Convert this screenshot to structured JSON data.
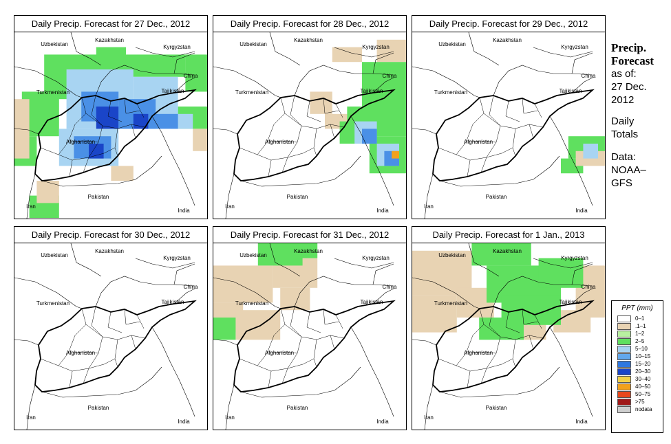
{
  "panels": [
    {
      "title": "Daily Precip. Forecast for  27 Dec., 2012",
      "precip": [
        {
          "level": "green",
          "cells": [
            [
              4,
              3,
              11,
              6
            ],
            [
              11,
              2,
              4,
              3
            ],
            [
              15,
              3,
              8,
              3
            ],
            [
              23,
              3,
              3,
              5
            ],
            [
              1,
              8,
              5,
              6
            ],
            [
              0,
              14,
              3,
              4
            ],
            [
              22,
              10,
              4,
              3
            ],
            [
              2,
              22,
              4,
              3
            ]
          ]
        },
        {
          "level": "tan",
          "cells": [
            [
              0,
              9,
              2,
              8
            ],
            [
              3,
              20,
              3,
              3
            ],
            [
              13,
              18,
              3,
              2
            ],
            [
              24,
              13,
              2,
              3
            ]
          ]
        },
        {
          "level": "blue1",
          "cells": [
            [
              7,
              5,
              9,
              8
            ],
            [
              16,
              6,
              6,
              6
            ],
            [
              6,
              13,
              8,
              5
            ],
            [
              21,
              11,
              3,
              2
            ]
          ]
        },
        {
          "level": "blue2",
          "cells": [
            [
              9,
              8,
              5,
              4
            ],
            [
              14,
              9,
              5,
              4
            ],
            [
              8,
              14,
              5,
              3
            ],
            [
              17,
              11,
              5,
              2
            ]
          ]
        },
        {
          "level": "blue3",
          "cells": [
            [
              11,
              10,
              3,
              3
            ],
            [
              16,
              11,
              2,
              2
            ],
            [
              10,
              15,
              2,
              2
            ]
          ]
        }
      ]
    },
    {
      "title": "Daily Precip. Forecast for  28 Dec., 2012",
      "precip": [
        {
          "level": "tan",
          "cells": [
            [
              16,
              2,
              4,
              2
            ],
            [
              22,
              1,
              4,
              3
            ],
            [
              13,
              8,
              3,
              3
            ],
            [
              15,
              11,
              3,
              2
            ],
            [
              24,
              5,
              2,
              3
            ]
          ]
        },
        {
          "level": "green",
          "cells": [
            [
              20,
              4,
              6,
              6
            ],
            [
              18,
              10,
              8,
              4
            ],
            [
              21,
              14,
              5,
              5
            ],
            [
              17,
              12,
              4,
              3
            ]
          ]
        },
        {
          "level": "blue1",
          "cells": [
            [
              19,
              12,
              3,
              3
            ],
            [
              22,
              15,
              3,
              3
            ]
          ]
        },
        {
          "level": "blue2",
          "cells": [
            [
              20,
              13,
              2,
              2
            ],
            [
              23,
              16,
              2,
              2
            ]
          ]
        },
        {
          "level": "orange",
          "cells": [
            [
              24,
              16,
              1,
              1
            ]
          ]
        }
      ]
    },
    {
      "title": "Daily Precip. Forecast for  29 Dec., 2012",
      "precip": [
        {
          "level": "green",
          "cells": [
            [
              21,
              14,
              5,
              3
            ],
            [
              20,
              17,
              3,
              2
            ]
          ]
        },
        {
          "level": "tan",
          "cells": [
            [
              22,
              16,
              4,
              2
            ]
          ]
        },
        {
          "level": "blue1",
          "cells": [
            [
              23,
              15,
              2,
              2
            ]
          ]
        }
      ]
    },
    {
      "title": "Daily Precip. Forecast for  30 Dec., 2012",
      "precip": []
    },
    {
      "title": "Daily Precip. Forecast for  31 Dec., 2012",
      "precip": [
        {
          "level": "tan",
          "cells": [
            [
              0,
              3,
              8,
              5
            ],
            [
              8,
              2,
              6,
              4
            ],
            [
              0,
              8,
              4,
              4
            ],
            [
              3,
              9,
              6,
              4
            ],
            [
              9,
              6,
              4,
              3
            ]
          ]
        },
        {
          "level": "green",
          "cells": [
            [
              6,
              0,
              6,
              3
            ],
            [
              0,
              10,
              3,
              3
            ],
            [
              11,
              0,
              3,
              2
            ]
          ]
        }
      ]
    },
    {
      "title": "Daily Precip. Forecast for  1 Jan., 2013",
      "precip": [
        {
          "level": "tan",
          "cells": [
            [
              0,
              1,
              8,
              6
            ],
            [
              0,
              7,
              6,
              5
            ],
            [
              6,
              6,
              5,
              4
            ],
            [
              22,
              3,
              4,
              7
            ],
            [
              19,
              9,
              5,
              3
            ],
            [
              13,
              10,
              5,
              3
            ]
          ]
        },
        {
          "level": "green",
          "cells": [
            [
              8,
              0,
              8,
              3
            ],
            [
              10,
              3,
              10,
              5
            ],
            [
              12,
              7,
              8,
              4
            ],
            [
              17,
              2,
              6,
              4
            ],
            [
              9,
              10,
              6,
              3
            ]
          ]
        }
      ]
    }
  ],
  "labels": {
    "kazakhstan": "Kazakhstan",
    "uzbekistan": "Uzbekistan",
    "kyrgyzstan": "Kyrgyzstan",
    "china": "China",
    "turkmenistan": "Turkmenistan",
    "tajikistan": "Tajikistan",
    "afghanistan": "Afghanistan",
    "iran": "Iran",
    "pakistan": "Pakistan",
    "india": "India"
  },
  "sidebar": {
    "title_line1": "Precip.",
    "title_line2": "Forecast",
    "asof": "as of:",
    "date_line1": "27 Dec.",
    "date_line2": "2012",
    "daily": "Daily",
    "totals": "Totals",
    "data_label": "Data:",
    "data_src1": "NOAA–",
    "data_src2": "GFS"
  },
  "legend": {
    "title": "PPT (mm)",
    "items": [
      {
        "label": "0–1",
        "color": "#ffffff"
      },
      {
        "label": ".1–1",
        "color": "#e8d3b3"
      },
      {
        "label": "1–2",
        "color": "#b8f0a0"
      },
      {
        "label": "2–5",
        "color": "#5fe05f"
      },
      {
        "label": "5–10",
        "color": "#a8d4f2"
      },
      {
        "label": "10–15",
        "color": "#62a8ec"
      },
      {
        "label": "15–20",
        "color": "#2f78e0"
      },
      {
        "label": "20–30",
        "color": "#1a45c8"
      },
      {
        "label": "30–40",
        "color": "#f2d24a"
      },
      {
        "label": "40–50",
        "color": "#f2a11c"
      },
      {
        "label": "50–75",
        "color": "#e8471c"
      },
      {
        "label": ">75",
        "color": "#a01818"
      },
      {
        "label": "nodata",
        "color": "#cfcfcf"
      }
    ]
  },
  "level_colors": {
    "tan": "#e8d3b3",
    "green": "#5fe05f",
    "blue1": "#a8d4f2",
    "blue2": "#4a90e6",
    "blue3": "#1a45c8",
    "orange": "#f2a11c"
  }
}
